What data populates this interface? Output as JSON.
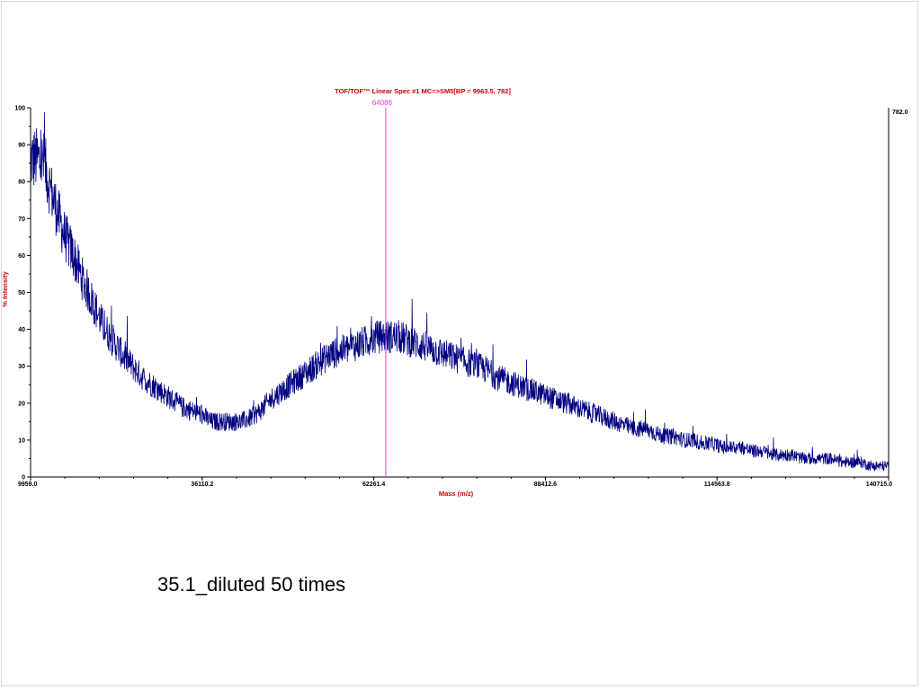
{
  "slide": {
    "caption": "35.1_diluted 50 times"
  },
  "chart_data": {
    "type": "line",
    "title": "TOF/TOF™ Linear Spec #1 MC=>SM5[BP = 9963.5, 782]",
    "xlabel": "Mass (m/z)",
    "ylabel": "% Intensity",
    "xlim": [
      9959.0,
      140715.0
    ],
    "ylim": [
      0,
      100
    ],
    "x_ticks": [
      "9959.0",
      "36110.2",
      "62261.4",
      "88412.6",
      "114563.8",
      "140715.0"
    ],
    "x_tick_values": [
      9959.0,
      36110.2,
      62261.4,
      88412.6,
      114563.8,
      140715.0
    ],
    "y_ticks": [
      0,
      10,
      20,
      30,
      40,
      50,
      60,
      70,
      80,
      90,
      100
    ],
    "right_axis_label": "782.0",
    "marker": {
      "label": "64086",
      "x": 64086,
      "color": "#e040e0"
    },
    "grid": false,
    "colors": {
      "series": "#000080",
      "title": "#cc0000",
      "axis_title": "#cc0000",
      "marker": "#e040e0"
    },
    "series": [
      {
        "values_note_free": true,
        "x": [
          9959,
          11000,
          12000,
          13000,
          14000,
          15000,
          16500,
          18000,
          19500,
          21000,
          22500,
          24000,
          25500,
          27000,
          28500,
          30000,
          31500,
          33000,
          34500,
          36000,
          37500,
          39000,
          40500,
          42000,
          43500,
          45000,
          46500,
          48000,
          49500,
          51000,
          52500,
          54000,
          55500,
          57000,
          58500,
          60000,
          61500,
          63000,
          64500,
          66000,
          67500,
          69000,
          70500,
          72000,
          73500,
          75000,
          76500,
          78000,
          79500,
          81000,
          82500,
          84000,
          85500,
          87000,
          88500,
          90000,
          91500,
          93000,
          94500,
          96000,
          97500,
          99000,
          100500,
          102000,
          103500,
          105000,
          106500,
          108000,
          109500,
          111000,
          112500,
          114000,
          115500,
          117000,
          118500,
          120000,
          121500,
          123000,
          124500,
          126000,
          127500,
          129000,
          130500,
          132000,
          133500,
          135000,
          136500,
          138000,
          139500,
          140715
        ],
        "y": [
          86,
          86,
          85,
          78,
          72,
          66,
          60,
          53,
          47,
          41,
          37,
          33,
          30,
          27,
          25,
          23,
          21,
          19,
          18,
          17,
          15,
          15,
          15,
          15,
          16,
          18,
          21,
          23,
          25,
          27,
          29,
          31,
          33,
          34,
          35,
          36,
          37,
          38,
          38,
          38,
          37,
          36,
          35,
          34,
          33,
          32,
          31,
          30,
          29,
          27,
          26,
          25,
          24,
          23,
          22,
          21,
          20,
          19,
          18,
          17,
          16,
          15,
          14,
          13,
          13,
          12,
          11,
          11,
          10,
          10,
          9,
          9,
          8,
          8,
          8,
          7,
          7,
          6,
          6,
          6,
          5,
          5,
          5,
          5,
          4,
          4,
          4,
          3,
          3,
          3
        ]
      }
    ]
  }
}
